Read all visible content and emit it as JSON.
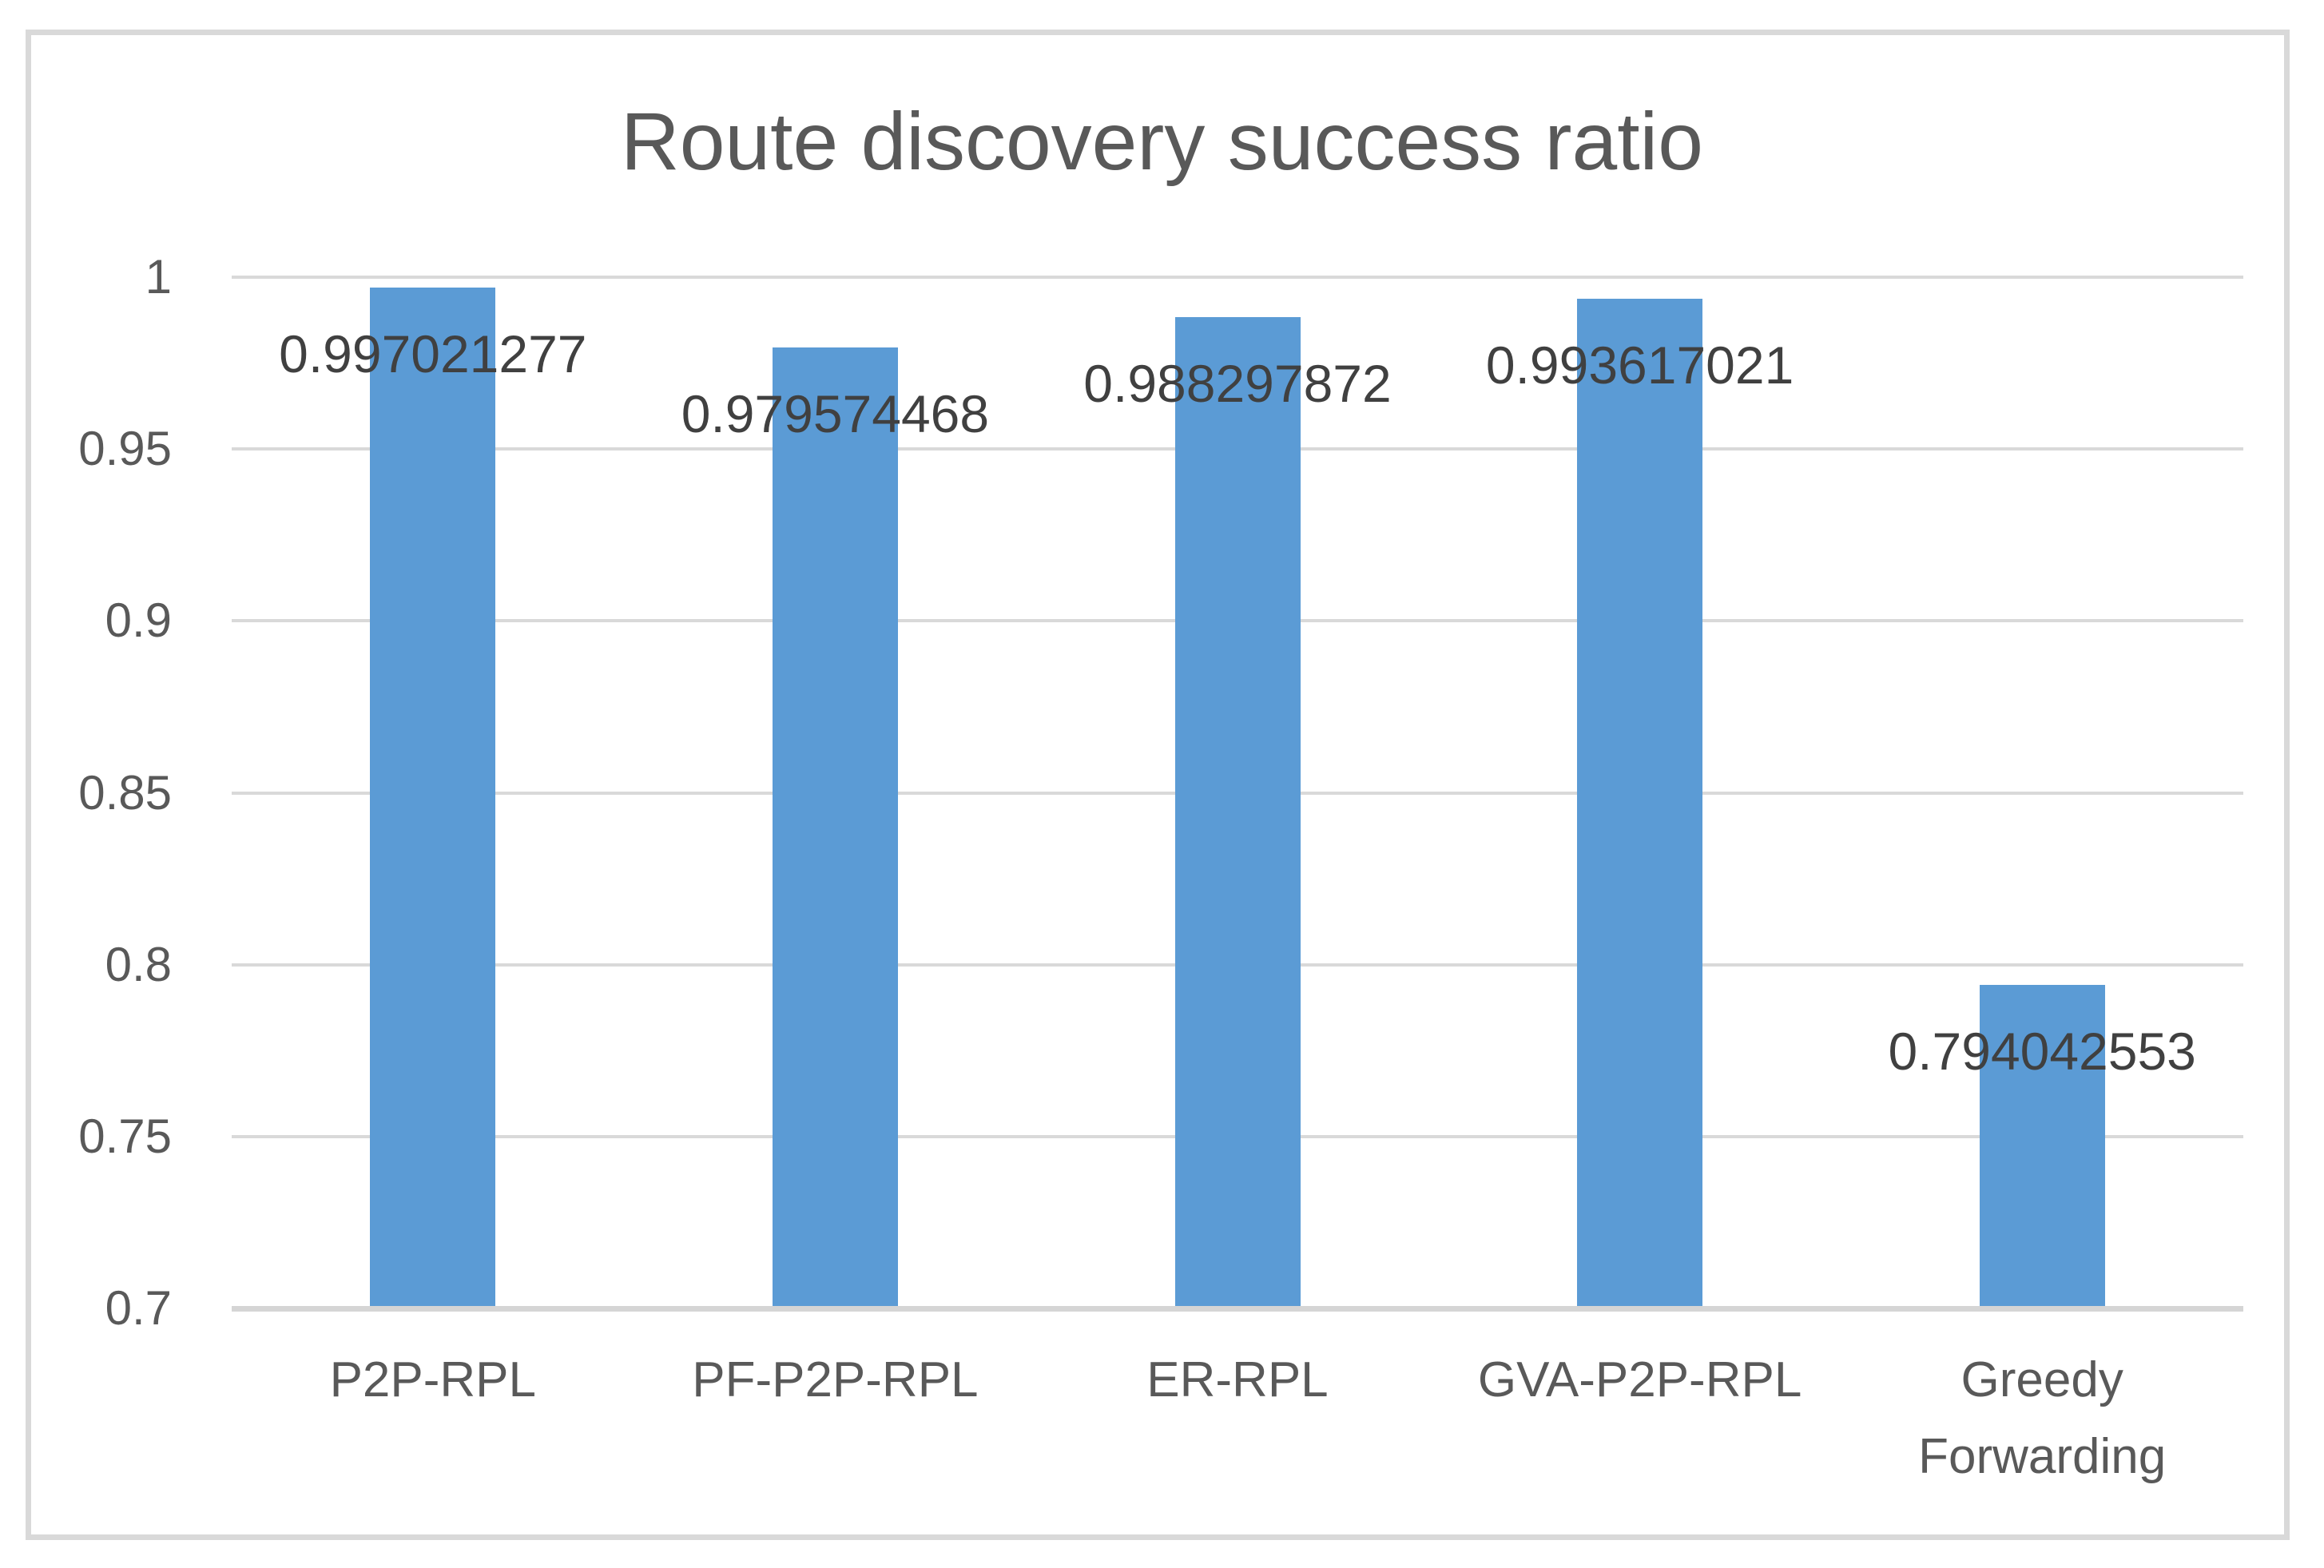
{
  "chart_data": {
    "type": "bar",
    "title": "Route discovery success ratio",
    "categories": [
      "P2P-RPL",
      "PF-P2P-RPL",
      "ER-RPL",
      "GVA-P2P-RPL",
      "Greedy Forwarding"
    ],
    "values": [
      0.997021277,
      0.979574468,
      0.988297872,
      0.993617021,
      0.794042553
    ],
    "data_labels": [
      "0.997021277",
      "0.979574468",
      "0.988297872",
      "0.993617021",
      "0.794042553"
    ],
    "xlabel": "",
    "ylabel": "",
    "ylim": [
      0.7,
      1.0
    ],
    "ytick_step": 0.05,
    "ytick_labels_top_to_bottom": [
      "1",
      "0.95",
      "0.9",
      "0.85",
      "0.8",
      "0.75",
      "0.7"
    ],
    "grid": "horizontal",
    "legend": "none",
    "colors": {
      "bar": "#5B9BD5",
      "gridline": "#D9D9D9",
      "axis_line": "#D5D5D5",
      "title_text": "#595959",
      "tick_text": "#595959",
      "data_label_text": "#404040",
      "frame_border": "#D9D9D9",
      "background": "#FFFFFF"
    }
  }
}
